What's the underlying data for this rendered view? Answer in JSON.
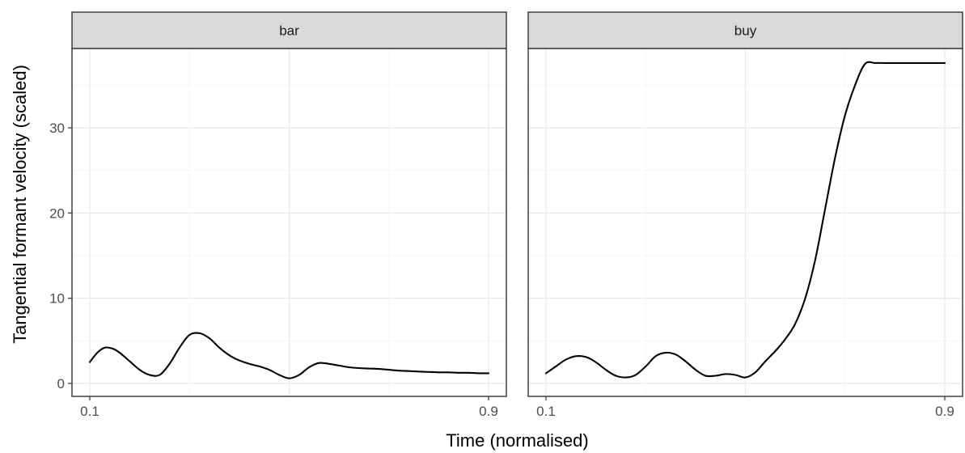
{
  "chart_data": {
    "type": "line",
    "facet_by": "word",
    "xlabel": "Time (normalised)",
    "ylabel": "Tangential formant velocity (scaled)",
    "xlim": [
      0.1,
      0.9
    ],
    "ylim": [
      0,
      40
    ],
    "x_ticks": [
      0.1,
      0.9
    ],
    "y_ticks": [
      0,
      10,
      20,
      30
    ],
    "grid": true,
    "line_color": "#000000",
    "panels": [
      {
        "label": "bar",
        "x": [
          0.1,
          0.115,
          0.13,
          0.145,
          0.16,
          0.18,
          0.2,
          0.22,
          0.24,
          0.26,
          0.28,
          0.3,
          0.32,
          0.34,
          0.36,
          0.38,
          0.4,
          0.42,
          0.44,
          0.46,
          0.48,
          0.5,
          0.52,
          0.54,
          0.56,
          0.58,
          0.6,
          0.62,
          0.64,
          0.66,
          0.68,
          0.7,
          0.72,
          0.74,
          0.76,
          0.78,
          0.8,
          0.82,
          0.84,
          0.86,
          0.88,
          0.9
        ],
        "y": [
          2.5,
          3.6,
          4.2,
          4.1,
          3.6,
          2.6,
          1.6,
          1.0,
          1.0,
          2.3,
          4.2,
          5.7,
          5.9,
          5.3,
          4.2,
          3.3,
          2.7,
          2.3,
          2.0,
          1.6,
          1.0,
          0.6,
          1.0,
          1.9,
          2.4,
          2.3,
          2.1,
          1.9,
          1.8,
          1.75,
          1.7,
          1.6,
          1.5,
          1.45,
          1.4,
          1.35,
          1.3,
          1.3,
          1.25,
          1.25,
          1.2,
          1.2
        ]
      },
      {
        "label": "buy",
        "x": [
          0.1,
          0.12,
          0.14,
          0.16,
          0.18,
          0.2,
          0.22,
          0.24,
          0.26,
          0.28,
          0.3,
          0.32,
          0.34,
          0.36,
          0.38,
          0.4,
          0.42,
          0.44,
          0.46,
          0.48,
          0.5,
          0.52,
          0.54,
          0.56,
          0.58,
          0.6,
          0.62,
          0.64,
          0.66,
          0.68,
          0.7,
          0.72,
          0.74,
          0.76,
          0.78,
          0.8,
          0.82,
          0.84,
          0.86,
          0.88,
          0.9
        ],
        "y": [
          1.2,
          2.0,
          2.8,
          3.2,
          3.1,
          2.5,
          1.6,
          0.9,
          0.7,
          1.0,
          2.0,
          3.2,
          3.6,
          3.4,
          2.6,
          1.6,
          0.9,
          0.9,
          1.1,
          1.0,
          0.7,
          1.3,
          2.6,
          3.8,
          5.2,
          7.0,
          10.0,
          14.5,
          20.5,
          26.5,
          31.5,
          35.0,
          37.5,
          37.6,
          37.6,
          37.6,
          37.6,
          37.6,
          37.6,
          37.6,
          37.6
        ]
      }
    ]
  }
}
